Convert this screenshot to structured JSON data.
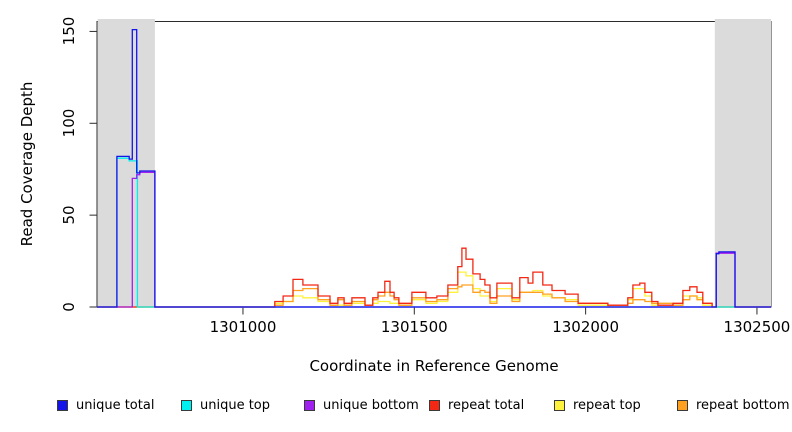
{
  "figure": {
    "background": "#ffffff"
  },
  "axes": {
    "x_label": "Coordinate in Reference Genome",
    "y_label": "Read Coverage Depth",
    "x_tick_labels": [
      "1301000",
      "1301500",
      "1302000",
      "1302500"
    ],
    "y_tick_labels": [
      "0",
      "50",
      "100",
      "150"
    ]
  },
  "legend": {
    "items": [
      {
        "label": "unique total",
        "color": "#1414e8"
      },
      {
        "label": "unique top",
        "color": "#00f0f0"
      },
      {
        "label": "unique bottom",
        "color": "#a020f0"
      },
      {
        "label": "repeat total",
        "color": "#f22814"
      },
      {
        "label": "repeat top",
        "color": "#fff23d"
      },
      {
        "label": "repeat bottom",
        "color": "#ffa020"
      }
    ]
  },
  "chart_data": {
    "type": "line",
    "line_style": "step",
    "title": "",
    "xlabel": "Coordinate in Reference Genome",
    "ylabel": "Read Coverage Depth",
    "xlim": [
      1300574,
      1302541
    ],
    "ylim": [
      0,
      155.4
    ],
    "x_ticks": [
      1301000,
      1301500,
      1302000,
      1302500
    ],
    "y_ticks": [
      0,
      50,
      100,
      150
    ],
    "grid": false,
    "legend_position": "bottom",
    "shade_color": "#dbdbdb",
    "shaded_regions": [
      {
        "x0": 1300574,
        "x1": 1300743
      },
      {
        "x0": 1302375,
        "x1": 1302541
      }
    ],
    "draw_order": [
      "repeat_top",
      "repeat_bottom",
      "repeat_total",
      "unique_top",
      "unique_bottom",
      "unique_total"
    ],
    "series": [
      {
        "name": "unique_total",
        "label": "unique total",
        "color": "#1414e8",
        "points": [
          [
            1300574,
            0
          ],
          [
            1300632,
            82
          ],
          [
            1300668,
            80.5
          ],
          [
            1300677,
            151
          ],
          [
            1300690,
            73
          ],
          [
            1300699,
            74
          ],
          [
            1300743,
            0
          ],
          [
            1302381,
            29
          ],
          [
            1302389,
            30
          ],
          [
            1302436,
            0
          ],
          [
            1302541,
            0
          ]
        ]
      },
      {
        "name": "unique_top",
        "label": "unique top",
        "color": "#00f0f0",
        "points": [
          [
            1300574,
            0
          ],
          [
            1300632,
            81
          ],
          [
            1300668,
            79.5
          ],
          [
            1300692,
            0
          ],
          [
            1302541,
            0
          ]
        ]
      },
      {
        "name": "unique_bottom",
        "label": "unique bottom",
        "color": "#a020f0",
        "points": [
          [
            1300574,
            0
          ],
          [
            1300677,
            70
          ],
          [
            1300690,
            72
          ],
          [
            1300699,
            73.3
          ],
          [
            1300743,
            0
          ],
          [
            1302381,
            29.3
          ],
          [
            1302436,
            0
          ],
          [
            1302541,
            0
          ]
        ]
      },
      {
        "name": "repeat_total",
        "label": "repeat total",
        "color": "#f22814",
        "points": [
          [
            1300574,
            0
          ],
          [
            1301093,
            3
          ],
          [
            1301117,
            6
          ],
          [
            1301146,
            15
          ],
          [
            1301175,
            12
          ],
          [
            1301219,
            6
          ],
          [
            1301254,
            2
          ],
          [
            1301277,
            5
          ],
          [
            1301295,
            2
          ],
          [
            1301318,
            5
          ],
          [
            1301356,
            1
          ],
          [
            1301379,
            5
          ],
          [
            1301394,
            8
          ],
          [
            1301414,
            14
          ],
          [
            1301429,
            8
          ],
          [
            1301441,
            5
          ],
          [
            1301455,
            2
          ],
          [
            1301493,
            8
          ],
          [
            1301534,
            5
          ],
          [
            1301566,
            6
          ],
          [
            1301598,
            12
          ],
          [
            1301627,
            22
          ],
          [
            1301639,
            32
          ],
          [
            1301651,
            26
          ],
          [
            1301671,
            18
          ],
          [
            1301692,
            15
          ],
          [
            1301706,
            12
          ],
          [
            1301721,
            5
          ],
          [
            1301741,
            13
          ],
          [
            1301785,
            5
          ],
          [
            1301808,
            16
          ],
          [
            1301832,
            13
          ],
          [
            1301846,
            19
          ],
          [
            1301875,
            12
          ],
          [
            1301902,
            9
          ],
          [
            1301940,
            7
          ],
          [
            1301978,
            2
          ],
          [
            1302065,
            1
          ],
          [
            1302123,
            5
          ],
          [
            1302138,
            12
          ],
          [
            1302158,
            13
          ],
          [
            1302173,
            8
          ],
          [
            1302193,
            3
          ],
          [
            1302211,
            1
          ],
          [
            1302255,
            2
          ],
          [
            1302284,
            9
          ],
          [
            1302304,
            11
          ],
          [
            1302325,
            8
          ],
          [
            1302342,
            2
          ],
          [
            1302369,
            0
          ]
        ]
      },
      {
        "name": "repeat_top",
        "label": "repeat top",
        "color": "#fff23d",
        "points": [
          [
            1300574,
            0
          ],
          [
            1301093,
            2
          ],
          [
            1301117,
            3
          ],
          [
            1301146,
            6
          ],
          [
            1301175,
            5
          ],
          [
            1301219,
            3
          ],
          [
            1301254,
            1
          ],
          [
            1301295,
            1
          ],
          [
            1301318,
            2
          ],
          [
            1301356,
            1
          ],
          [
            1301379,
            2
          ],
          [
            1301394,
            3
          ],
          [
            1301429,
            2
          ],
          [
            1301455,
            1
          ],
          [
            1301493,
            4
          ],
          [
            1301534,
            2
          ],
          [
            1301566,
            3
          ],
          [
            1301598,
            8
          ],
          [
            1301627,
            19
          ],
          [
            1301651,
            17
          ],
          [
            1301671,
            10
          ],
          [
            1301692,
            6
          ],
          [
            1301721,
            3
          ],
          [
            1301741,
            10
          ],
          [
            1301785,
            4
          ],
          [
            1301808,
            8
          ],
          [
            1301846,
            9
          ],
          [
            1301875,
            6
          ],
          [
            1301902,
            5
          ],
          [
            1301940,
            4
          ],
          [
            1301978,
            1
          ],
          [
            1302065,
            0
          ],
          [
            1302123,
            4
          ],
          [
            1302138,
            10
          ],
          [
            1302173,
            6
          ],
          [
            1302193,
            1
          ],
          [
            1302255,
            1
          ],
          [
            1302284,
            6
          ],
          [
            1302325,
            5
          ],
          [
            1302342,
            1
          ],
          [
            1302369,
            0
          ]
        ]
      },
      {
        "name": "repeat_bottom",
        "label": "repeat bottom",
        "color": "#ffa020",
        "points": [
          [
            1300574,
            0
          ],
          [
            1301093,
            1
          ],
          [
            1301117,
            3
          ],
          [
            1301146,
            9
          ],
          [
            1301175,
            10
          ],
          [
            1301219,
            4
          ],
          [
            1301254,
            1
          ],
          [
            1301277,
            4
          ],
          [
            1301295,
            1
          ],
          [
            1301318,
            3
          ],
          [
            1301356,
            1
          ],
          [
            1301379,
            4
          ],
          [
            1301394,
            6
          ],
          [
            1301414,
            8
          ],
          [
            1301429,
            6
          ],
          [
            1301441,
            4
          ],
          [
            1301455,
            1
          ],
          [
            1301493,
            5
          ],
          [
            1301534,
            3
          ],
          [
            1301566,
            4
          ],
          [
            1301598,
            10
          ],
          [
            1301627,
            11
          ],
          [
            1301639,
            12
          ],
          [
            1301671,
            8
          ],
          [
            1301692,
            9
          ],
          [
            1301706,
            8
          ],
          [
            1301721,
            2
          ],
          [
            1301741,
            6
          ],
          [
            1301785,
            3
          ],
          [
            1301808,
            8
          ],
          [
            1301846,
            8
          ],
          [
            1301875,
            7
          ],
          [
            1301902,
            5
          ],
          [
            1301940,
            3
          ],
          [
            1301978,
            2
          ],
          [
            1302065,
            1
          ],
          [
            1302123,
            2
          ],
          [
            1302138,
            4
          ],
          [
            1302173,
            3
          ],
          [
            1302193,
            2
          ],
          [
            1302255,
            1
          ],
          [
            1302284,
            4
          ],
          [
            1302304,
            6
          ],
          [
            1302325,
            4
          ],
          [
            1302342,
            2
          ],
          [
            1302369,
            0
          ]
        ]
      }
    ]
  }
}
